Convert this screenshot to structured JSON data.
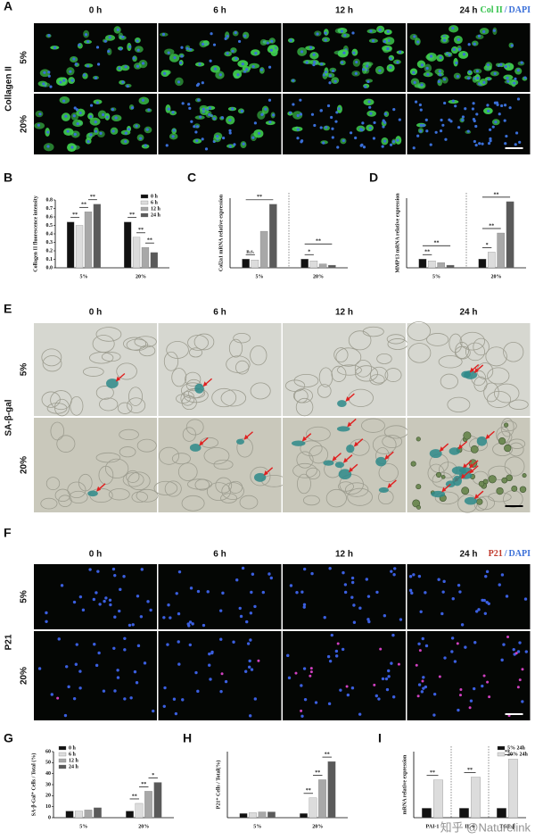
{
  "image_panels": [
    {
      "label": "A",
      "row_title": "Collagen II",
      "columns": [
        "0 h",
        "6 h",
        "12 h",
        "24 h"
      ],
      "rows": [
        "5%",
        "20%"
      ],
      "stain": [
        {
          "text": "Col II",
          "color": "#32c24a"
        },
        {
          "text": "DAPI",
          "color": "#3a6fd8"
        }
      ],
      "stain_separator": "/"
    },
    {
      "label": "E",
      "row_title": "SA-β-gal",
      "columns": [
        "0 h",
        "6 h",
        "12 h",
        "24 h"
      ],
      "rows": [
        "5%",
        "20%"
      ]
    },
    {
      "label": "F",
      "row_title": "P21",
      "columns": [
        "0 h",
        "6 h",
        "12 h",
        "24 h"
      ],
      "rows": [
        "5%",
        "20%"
      ],
      "stain": [
        {
          "text": "P21",
          "color": "#c0392b"
        },
        {
          "text": "DAPI",
          "color": "#3a6fd8"
        }
      ],
      "stain_separator": "/"
    }
  ],
  "chart_data": [
    {
      "type": "bar",
      "label": "B",
      "y_label": "Collagen II fluorescence intensity",
      "categories": [
        "5%",
        "20%"
      ],
      "series": [
        {
          "name": "0 h",
          "color": "#111111",
          "values": [
            0.54,
            0.54
          ]
        },
        {
          "name": "6 h",
          "color": "#dcdcdc",
          "values": [
            0.5,
            0.36
          ]
        },
        {
          "name": "12 h",
          "color": "#a8a8a8",
          "values": [
            0.66,
            0.24
          ]
        },
        {
          "name": "24 h",
          "color": "#5a5a5a",
          "values": [
            0.75,
            0.18
          ]
        }
      ],
      "ylim": [
        0,
        0.8
      ],
      "yticks": [
        {
          "value": 0,
          "label": "0.0"
        },
        0.1,
        0.2,
        0.3,
        0.4,
        0.5,
        0.6,
        0.7,
        0.8
      ],
      "legend": "upper right",
      "annotations": [
        "**",
        "**",
        "**",
        "**",
        "**",
        "**"
      ]
    },
    {
      "type": "bar",
      "label": "C",
      "y_label": "Col2a1 mRNA relative expression",
      "categories": [
        "5%",
        "20%"
      ],
      "series": [
        {
          "color": "#111111",
          "values": [
            1.0,
            1.0
          ]
        },
        {
          "color": "#dcdcdc",
          "values": [
            0.9,
            0.8
          ]
        },
        {
          "color": "#a8a8a8",
          "values": [
            4.2,
            0.45
          ]
        },
        {
          "color": "#5a5a5a",
          "values": [
            7.3,
            0.3
          ]
        }
      ],
      "ylim": [
        0,
        8
      ],
      "divider": true,
      "annotations": [
        "n.s.",
        "**",
        "*",
        "**"
      ]
    },
    {
      "type": "bar",
      "label": "D",
      "y_label": "MMP13 mRNA relative expression",
      "categories": [
        "5%",
        "20%"
      ],
      "series": [
        {
          "color": "#111111",
          "values": [
            1.0,
            1.0
          ]
        },
        {
          "color": "#dcdcdc",
          "values": [
            0.8,
            1.8
          ]
        },
        {
          "color": "#a8a8a8",
          "values": [
            0.6,
            4.0
          ]
        },
        {
          "color": "#5a5a5a",
          "values": [
            0.3,
            7.6
          ]
        }
      ],
      "ylim": [
        0,
        8
      ],
      "divider": true,
      "annotations": [
        "**",
        "**",
        "*",
        "**",
        "**"
      ]
    },
    {
      "type": "bar",
      "label": "G",
      "y_label": "SA-β-Gal⁺ Cells / Total (%)",
      "categories": [
        "5%",
        "20%"
      ],
      "series": [
        {
          "name": "0 h",
          "color": "#111111",
          "values": [
            6,
            6
          ]
        },
        {
          "name": "6 h",
          "color": "#dcdcdc",
          "values": [
            6,
            13
          ]
        },
        {
          "name": "12 h",
          "color": "#a8a8a8",
          "values": [
            7,
            24
          ]
        },
        {
          "name": "24 h",
          "color": "#5a5a5a",
          "values": [
            9,
            32
          ]
        }
      ],
      "ylim": [
        0,
        60
      ],
      "yticks": [
        0,
        10,
        20,
        30,
        40,
        50,
        60
      ],
      "legend": "upper left",
      "annotations": [
        "**",
        "**",
        "*"
      ]
    },
    {
      "type": "bar",
      "label": "H",
      "y_label": "P21⁺ Cells / Total(%)",
      "categories": [
        "5%",
        "20%"
      ],
      "series": [
        {
          "color": "#111111",
          "values": [
            5,
            5
          ]
        },
        {
          "color": "#dcdcdc",
          "values": [
            6,
            24
          ]
        },
        {
          "color": "#a8a8a8",
          "values": [
            7,
            46
          ]
        },
        {
          "color": "#5a5a5a",
          "values": [
            7,
            68
          ]
        }
      ],
      "ylim": [
        0,
        80
      ],
      "annotations": [
        "**",
        "**",
        "**"
      ]
    },
    {
      "type": "bar",
      "label": "I",
      "y_label": "mRNA relative expression",
      "categories": [
        "PAI-1",
        "IL-6",
        "TGF-β"
      ],
      "series": [
        {
          "name": "5% 24h",
          "color": "#111111",
          "values": [
            1,
            1,
            1
          ]
        },
        {
          "name": "20% 24h",
          "color": "#dcdcdc",
          "values": [
            4.0,
            4.3,
            6.2
          ]
        }
      ],
      "ylim": [
        0,
        7
      ],
      "divider": true,
      "legend": "upper right",
      "annotations": [
        "**",
        "**",
        "**"
      ]
    }
  ],
  "watermark": "知乎 @Naturelink"
}
